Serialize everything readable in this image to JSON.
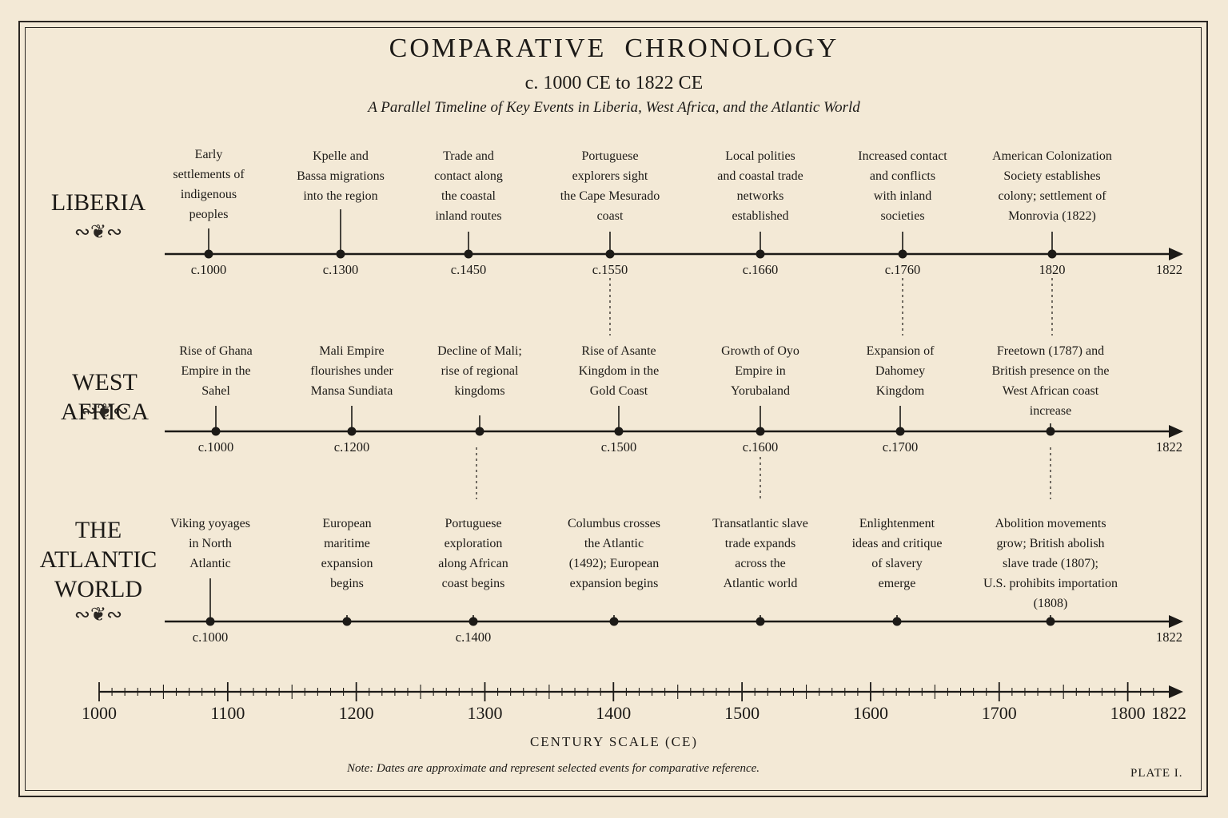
{
  "header": {
    "title": "COMPARATIVE  CHRONOLOGY",
    "subtitle": "c. 1000 CE to 1822 CE",
    "caption": "A Parallel Timeline of Key Events in Liberia, West Africa, and the Atlantic World"
  },
  "rows": [
    {
      "label": "LIBERIA",
      "end_label": "1822",
      "events": [
        {
          "text": "Early\nsettlements of\nindigenous\npeoples",
          "date": "c.1000",
          "year": 1000
        },
        {
          "text": "Kpelle and\nBassa migrations\ninto the region",
          "date": "c.1300",
          "year": 1300
        },
        {
          "text": "Trade and\ncontact along\nthe coastal\ninland routes",
          "date": "c.1450",
          "year": 1450
        },
        {
          "text": "Portuguese\nexplorers sight\nthe Cape Mesurado\ncoast",
          "date": "c.1550",
          "year": 1550
        },
        {
          "text": "Local polities\nand coastal trade\nnetworks\nestablished",
          "date": "c.1660",
          "year": 1660
        },
        {
          "text": "Increased contact\nand conflicts\nwith inland\nsocieties",
          "date": "c.1760",
          "year": 1760
        },
        {
          "text": "American Colonization\nSociety establishes\ncolony; settlement of\nMonrovia (1822)",
          "date": "1820",
          "year": 1820
        }
      ]
    },
    {
      "label": "WEST AFRICA",
      "end_label": "1822",
      "events": [
        {
          "text": "Rise of Ghana\nEmpire in the\nSahel",
          "date": "c.1000",
          "year": 1000
        },
        {
          "text": "Mali Empire\nflourishes under\nMansa Sundiata",
          "date": "c.1200",
          "year": 1200
        },
        {
          "text": "Decline of Mali;\nrise of regional\nkingdoms",
          "date": "",
          "year": null
        },
        {
          "text": "Rise of Asante\nKingdom in the\nGold Coast",
          "date": "c.1500",
          "year": 1500
        },
        {
          "text": "Growth of Oyo\nEmpire in\nYorubaland",
          "date": "c.1600",
          "year": 1600
        },
        {
          "text": "Expansion of\nDahomey\nKingdom",
          "date": "c.1700",
          "year": 1700
        },
        {
          "text": "Freetown (1787) and\nBritish presence on the\nWest African coast\nincrease",
          "date": "",
          "year": 1787
        }
      ]
    },
    {
      "label": "THE\nATLANTIC\nWORLD",
      "end_label": "1822",
      "events": [
        {
          "text": "Viking yoyages\nin North\nAtlantic",
          "date": "c.1000",
          "year": 1000
        },
        {
          "text": "European\nmaritime\nexpansion\nbegins",
          "date": "",
          "year": null
        },
        {
          "text": "Portuguese\nexploration\nalong African\ncoast begins",
          "date": "c.1400",
          "year": 1400
        },
        {
          "text": "Columbus crosses\nthe Atlantic\n(1492); European\nexpansion begins",
          "date": "",
          "year": 1492
        },
        {
          "text": "Transatlantic slave\ntrade expands\nacross the\nAtlantic world",
          "date": "",
          "year": null
        },
        {
          "text": "Enlightenment\nideas and critique\nof slavery\nemerge",
          "date": "",
          "year": null
        },
        {
          "text": "Abolition movements\ngrow; British abolish\nslave trade (1807);\nU.S. prohibits importation\n(1808)",
          "date": "",
          "year": 1807
        }
      ]
    }
  ],
  "scale": {
    "labels": [
      "1000",
      "1100",
      "1200",
      "1300",
      "1400",
      "1500",
      "1600",
      "1700",
      "1800",
      "1822"
    ],
    "title": "CENTURY SCALE (CE)"
  },
  "footer": {
    "note": "Note: Dates are approximate and represent selected events for comparative reference.",
    "plate": "PLATE I."
  }
}
